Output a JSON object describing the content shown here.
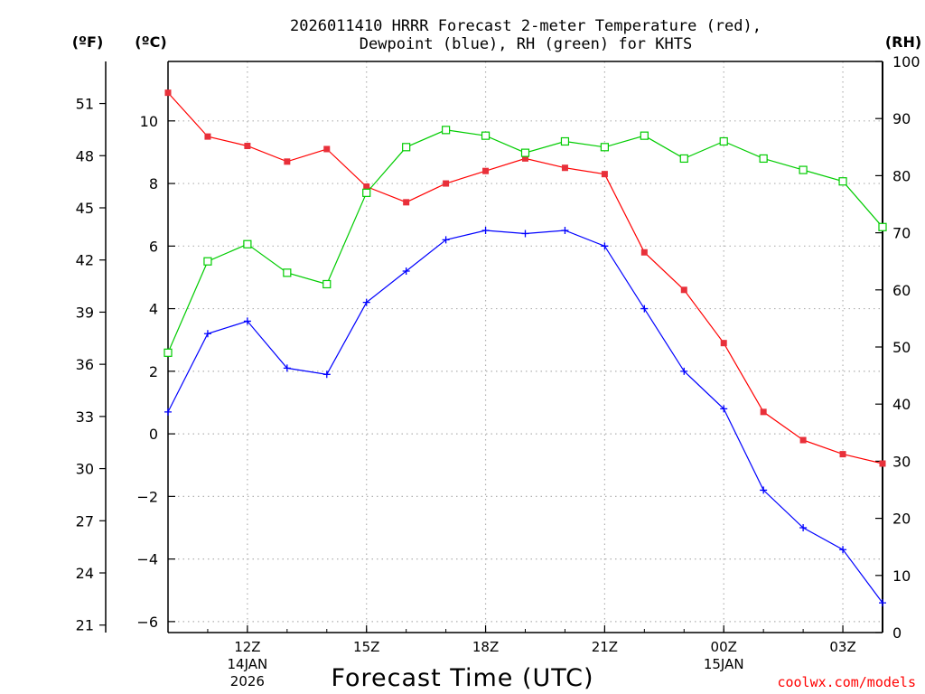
{
  "chart_data": {
    "type": "line",
    "title_line1": "2026011410 HRRR Forecast 2-meter Temperature (red),",
    "title_line2": "Dewpoint (blue), RH (green) for KHTS",
    "xlabel": "Forecast Time (UTC)",
    "units": {
      "f": "(ºF)",
      "c": "(ºC)",
      "rh": "(RH)"
    },
    "hours": [
      10,
      11,
      12,
      13,
      14,
      15,
      16,
      17,
      18,
      19,
      20,
      21,
      22,
      23,
      24,
      25,
      26,
      27,
      28
    ],
    "x_ticks": [
      {
        "hour": 12,
        "label": "12Z",
        "date1": "14JAN",
        "date2": "2026"
      },
      {
        "hour": 15,
        "label": "15Z",
        "date1": "",
        "date2": ""
      },
      {
        "hour": 18,
        "label": "18Z",
        "date1": "",
        "date2": ""
      },
      {
        "hour": 21,
        "label": "21Z",
        "date1": "",
        "date2": ""
      },
      {
        "hour": 24,
        "label": "00Z",
        "date1": "15JAN",
        "date2": ""
      },
      {
        "hour": 27,
        "label": "03Z",
        "date1": "",
        "date2": ""
      }
    ],
    "ylim_c": [
      -6.35,
      11.9
    ],
    "ylim_rh": [
      0,
      100
    ],
    "y_ticks_c": [
      "-6",
      "-4",
      "-2",
      "0",
      "2",
      "4",
      "6",
      "8",
      "10"
    ],
    "y_ticks_f": [
      "21",
      "24",
      "27",
      "30",
      "33",
      "36",
      "39",
      "42",
      "45",
      "48",
      "51"
    ],
    "y_ticks_rh": [
      "0",
      "10",
      "20",
      "30",
      "40",
      "50",
      "60",
      "70",
      "80",
      "90",
      "100"
    ],
    "series": [
      {
        "name": "Temperature",
        "unit": "C",
        "color": "#ff0000",
        "marker": "square-filled",
        "values": [
          10.9,
          9.5,
          9.2,
          8.7,
          9.1,
          7.9,
          7.4,
          8.0,
          8.4,
          8.8,
          8.5,
          8.3,
          5.8,
          4.6,
          2.9,
          0.7,
          -0.2,
          -0.65,
          -0.95
        ]
      },
      {
        "name": "Dewpoint",
        "unit": "C",
        "color": "#0000ff",
        "marker": "plus",
        "values": [
          0.7,
          3.2,
          3.6,
          2.1,
          1.9,
          4.2,
          5.2,
          6.2,
          6.5,
          6.4,
          6.5,
          6.0,
          4.0,
          2.0,
          0.8,
          -1.8,
          -3.0,
          -3.7,
          -5.4
        ]
      },
      {
        "name": "RH",
        "unit": "%",
        "color": "#00cc00",
        "marker": "square-open",
        "values": [
          49,
          65,
          68,
          63,
          61,
          77,
          85,
          88,
          87,
          84,
          86,
          85,
          87,
          83,
          86,
          83,
          81,
          79,
          71
        ]
      }
    ],
    "grid": true,
    "credit": "coolwx.com/models"
  }
}
